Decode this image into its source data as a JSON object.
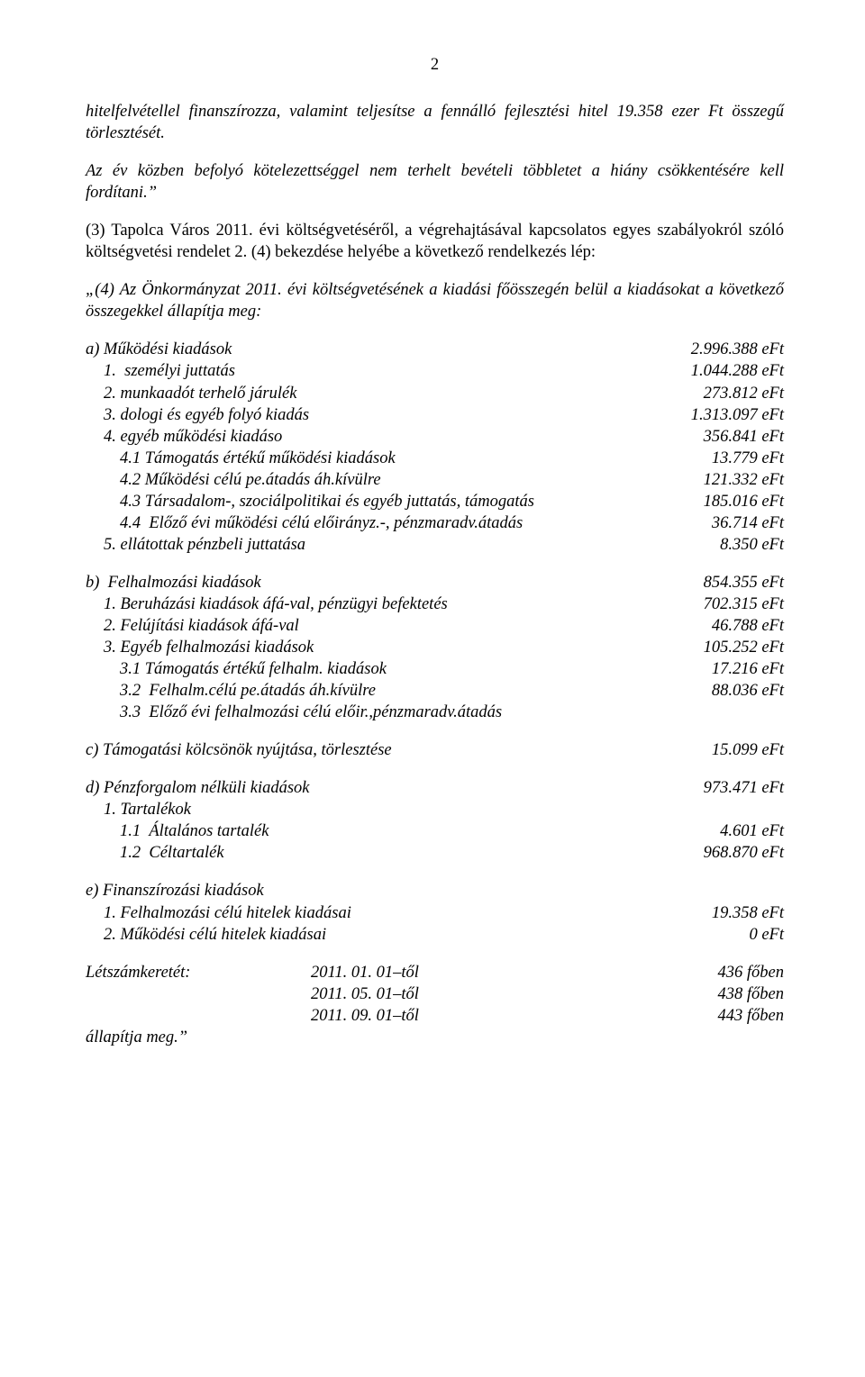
{
  "pageNumber": "2",
  "para1": "hitelfelvétellel finanszírozza, valamint teljesítse a fennálló fejlesztési hitel 19.358 ezer Ft összegű törlesztését.",
  "para2": "Az év közben befolyó kötelezettséggel nem terhelt bevételi többletet a hiány csökkentésére kell fordítani.”",
  "para3": "(3) Tapolca Város 2011. évi költségvetéséről, a végrehajtásával kapcsolatos egyes szabályokról szóló  költségvetési rendelet 2. (4) bekezdése helyébe a következő rendelkezés lép:",
  "para4": "„(4) Az Önkormányzat 2011. évi költségvetésének a kiadási főösszegén belül a kiadásokat a következő összegekkel állapítja meg:",
  "sectionA": {
    "title": {
      "label": "a) Működési kiadások",
      "value": "2.996.388 eFt"
    },
    "items": [
      {
        "label": "1.  személyi juttatás",
        "value": "1.044.288 eFt",
        "indent": 1
      },
      {
        "label": "2. munkaadót terhelő járulék",
        "value": "273.812 eFt",
        "indent": 1
      },
      {
        "label": "3. dologi és egyéb folyó kiadás",
        "value": "1.313.097 eFt",
        "indent": 1
      },
      {
        "label": "4. egyéb működési kiadáso",
        "value": "356.841 eFt",
        "indent": 1
      },
      {
        "label": "4.1 Támogatás értékű működési kiadások",
        "value": "13.779 eFt",
        "indent": 2
      },
      {
        "label": "4.2 Működési célú pe.átadás áh.kívülre",
        "value": "121.332 eFt",
        "indent": 2
      },
      {
        "label": "4.3 Társadalom-, szociálpolitikai és egyéb juttatás, támogatás",
        "value": "185.016 eFt",
        "indent": 2
      },
      {
        "label": "4.4  Előző évi működési célú előirányz.-, pénzmaradv.átadás",
        "value": "36.714 eFt",
        "indent": 2
      },
      {
        "label": "5. ellátottak pénzbeli juttatása",
        "value": "8.350 eFt",
        "indent": 1
      }
    ]
  },
  "sectionB": {
    "title": {
      "label": "b)  Felhalmozási kiadások",
      "value": "854.355 eFt"
    },
    "items": [
      {
        "label": "1. Beruházási kiadások áfá-val, pénzügyi befektetés",
        "value": "702.315 eFt",
        "indent": 1
      },
      {
        "label": "2. Felújítási kiadások áfá-val",
        "value": "46.788 eFt",
        "indent": 1
      },
      {
        "label": "3. Egyéb felhalmozási kiadások",
        "value": "105.252 eFt",
        "indent": 1
      },
      {
        "label": "3.1 Támogatás értékű felhalm. kiadások",
        "value": "17.216 eFt",
        "indent": 2
      },
      {
        "label": "3.2  Felhalm.célú pe.átadás áh.kívülre",
        "value": "88.036 eFt",
        "indent": 2
      },
      {
        "label": "3.3  Előző évi felhalmozási célú előir.,pénzmaradv.átadás",
        "value": "",
        "indent": 2
      }
    ]
  },
  "sectionC": {
    "title": {
      "label": "c) Támogatási kölcsönök nyújtása, törlesztése",
      "value": "15.099 eFt"
    }
  },
  "sectionD": {
    "title": {
      "label": "d) Pénzforgalom nélküli kiadások",
      "value": "973.471 eFt"
    },
    "items": [
      {
        "label": "1. Tartalékok",
        "value": "",
        "indent": 1
      },
      {
        "label": "1.1  Általános tartalék",
        "value": "4.601 eFt",
        "indent": 2
      },
      {
        "label": "1.2  Céltartalék",
        "value": "968.870 eFt",
        "indent": 2
      }
    ]
  },
  "sectionE": {
    "title": {
      "label": "e) Finanszírozási kiadások",
      "value": ""
    },
    "items": [
      {
        "label": "1. Felhalmozási célú hitelek kiadásai",
        "value": "19.358 eFt",
        "indent": 1
      },
      {
        "label": "2. Működési célú hitelek kiadásai",
        "value": "0 eFt",
        "indent": 1
      }
    ]
  },
  "headcount": {
    "label": "Létszámkeretét:",
    "rows": [
      {
        "date": "2011. 01. 01–től",
        "value": "436 főben"
      },
      {
        "date": "2011. 05. 01–től",
        "value": "438 főben"
      },
      {
        "date": "2011. 09. 01–től",
        "value": "443 főben"
      }
    ],
    "closing": "állapítja meg.”"
  }
}
